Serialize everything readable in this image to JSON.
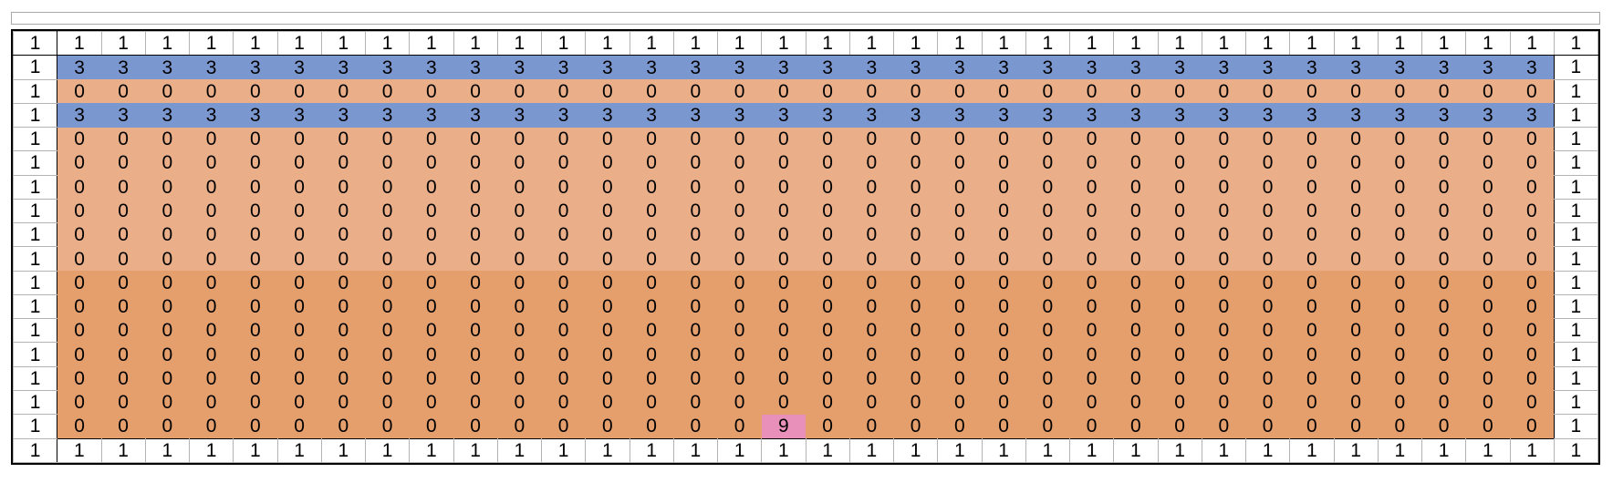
{
  "grid": {
    "columns": 36,
    "colors": {
      "1": "#ffffff",
      "3": "#7b97cf",
      "0_light": "#eaaf89",
      "0_dark": "#e49f6d",
      "9": "#e88fba"
    },
    "rows": [
      [
        "1",
        "1",
        "1",
        "1",
        "1",
        "1",
        "1",
        "1",
        "1",
        "1",
        "1",
        "1",
        "1",
        "1",
        "1",
        "1",
        "1",
        "1",
        "1",
        "1",
        "1",
        "1",
        "1",
        "1",
        "1",
        "1",
        "1",
        "1",
        "1",
        "1",
        "1",
        "1",
        "1",
        "1",
        "1",
        "1"
      ],
      [
        "1",
        "3",
        "3",
        "3",
        "3",
        "3",
        "3",
        "3",
        "3",
        "3",
        "3",
        "3",
        "3",
        "3",
        "3",
        "3",
        "3",
        "3",
        "3",
        "3",
        "3",
        "3",
        "3",
        "3",
        "3",
        "3",
        "3",
        "3",
        "3",
        "3",
        "3",
        "3",
        "3",
        "3",
        "3",
        "1"
      ],
      [
        "1",
        "0",
        "0",
        "0",
        "0",
        "0",
        "0",
        "0",
        "0",
        "0",
        "0",
        "0",
        "0",
        "0",
        "0",
        "0",
        "0",
        "0",
        "0",
        "0",
        "0",
        "0",
        "0",
        "0",
        "0",
        "0",
        "0",
        "0",
        "0",
        "0",
        "0",
        "0",
        "0",
        "0",
        "0",
        "1"
      ],
      [
        "1",
        "3",
        "3",
        "3",
        "3",
        "3",
        "3",
        "3",
        "3",
        "3",
        "3",
        "3",
        "3",
        "3",
        "3",
        "3",
        "3",
        "3",
        "3",
        "3",
        "3",
        "3",
        "3",
        "3",
        "3",
        "3",
        "3",
        "3",
        "3",
        "3",
        "3",
        "3",
        "3",
        "3",
        "3",
        "1"
      ],
      [
        "1",
        "0",
        "0",
        "0",
        "0",
        "0",
        "0",
        "0",
        "0",
        "0",
        "0",
        "0",
        "0",
        "0",
        "0",
        "0",
        "0",
        "0",
        "0",
        "0",
        "0",
        "0",
        "0",
        "0",
        "0",
        "0",
        "0",
        "0",
        "0",
        "0",
        "0",
        "0",
        "0",
        "0",
        "0",
        "1"
      ],
      [
        "1",
        "0",
        "0",
        "0",
        "0",
        "0",
        "0",
        "0",
        "0",
        "0",
        "0",
        "0",
        "0",
        "0",
        "0",
        "0",
        "0",
        "0",
        "0",
        "0",
        "0",
        "0",
        "0",
        "0",
        "0",
        "0",
        "0",
        "0",
        "0",
        "0",
        "0",
        "0",
        "0",
        "0",
        "0",
        "1"
      ],
      [
        "1",
        "0",
        "0",
        "0",
        "0",
        "0",
        "0",
        "0",
        "0",
        "0",
        "0",
        "0",
        "0",
        "0",
        "0",
        "0",
        "0",
        "0",
        "0",
        "0",
        "0",
        "0",
        "0",
        "0",
        "0",
        "0",
        "0",
        "0",
        "0",
        "0",
        "0",
        "0",
        "0",
        "0",
        "0",
        "1"
      ],
      [
        "1",
        "0",
        "0",
        "0",
        "0",
        "0",
        "0",
        "0",
        "0",
        "0",
        "0",
        "0",
        "0",
        "0",
        "0",
        "0",
        "0",
        "0",
        "0",
        "0",
        "0",
        "0",
        "0",
        "0",
        "0",
        "0",
        "0",
        "0",
        "0",
        "0",
        "0",
        "0",
        "0",
        "0",
        "0",
        "1"
      ],
      [
        "1",
        "0",
        "0",
        "0",
        "0",
        "0",
        "0",
        "0",
        "0",
        "0",
        "0",
        "0",
        "0",
        "0",
        "0",
        "0",
        "0",
        "0",
        "0",
        "0",
        "0",
        "0",
        "0",
        "0",
        "0",
        "0",
        "0",
        "0",
        "0",
        "0",
        "0",
        "0",
        "0",
        "0",
        "0",
        "1"
      ],
      [
        "1",
        "0",
        "0",
        "0",
        "0",
        "0",
        "0",
        "0",
        "0",
        "0",
        "0",
        "0",
        "0",
        "0",
        "0",
        "0",
        "0",
        "0",
        "0",
        "0",
        "0",
        "0",
        "0",
        "0",
        "0",
        "0",
        "0",
        "0",
        "0",
        "0",
        "0",
        "0",
        "0",
        "0",
        "0",
        "1"
      ],
      [
        "1",
        "0",
        "0",
        "0",
        "0",
        "0",
        "0",
        "0",
        "0",
        "0",
        "0",
        "0",
        "0",
        "0",
        "0",
        "0",
        "0",
        "0",
        "0",
        "0",
        "0",
        "0",
        "0",
        "0",
        "0",
        "0",
        "0",
        "0",
        "0",
        "0",
        "0",
        "0",
        "0",
        "0",
        "0",
        "1"
      ],
      [
        "1",
        "0",
        "0",
        "0",
        "0",
        "0",
        "0",
        "0",
        "0",
        "0",
        "0",
        "0",
        "0",
        "0",
        "0",
        "0",
        "0",
        "0",
        "0",
        "0",
        "0",
        "0",
        "0",
        "0",
        "0",
        "0",
        "0",
        "0",
        "0",
        "0",
        "0",
        "0",
        "0",
        "0",
        "0",
        "1"
      ],
      [
        "1",
        "0",
        "0",
        "0",
        "0",
        "0",
        "0",
        "0",
        "0",
        "0",
        "0",
        "0",
        "0",
        "0",
        "0",
        "0",
        "0",
        "0",
        "0",
        "0",
        "0",
        "0",
        "0",
        "0",
        "0",
        "0",
        "0",
        "0",
        "0",
        "0",
        "0",
        "0",
        "0",
        "0",
        "0",
        "1"
      ],
      [
        "1",
        "0",
        "0",
        "0",
        "0",
        "0",
        "0",
        "0",
        "0",
        "0",
        "0",
        "0",
        "0",
        "0",
        "0",
        "0",
        "0",
        "0",
        "0",
        "0",
        "0",
        "0",
        "0",
        "0",
        "0",
        "0",
        "0",
        "0",
        "0",
        "0",
        "0",
        "0",
        "0",
        "0",
        "0",
        "1"
      ],
      [
        "1",
        "0",
        "0",
        "0",
        "0",
        "0",
        "0",
        "0",
        "0",
        "0",
        "0",
        "0",
        "0",
        "0",
        "0",
        "0",
        "0",
        "0",
        "0",
        "0",
        "0",
        "0",
        "0",
        "0",
        "0",
        "0",
        "0",
        "0",
        "0",
        "0",
        "0",
        "0",
        "0",
        "0",
        "0",
        "1"
      ],
      [
        "1",
        "0",
        "0",
        "0",
        "0",
        "0",
        "0",
        "0",
        "0",
        "0",
        "0",
        "0",
        "0",
        "0",
        "0",
        "0",
        "0",
        "0",
        "0",
        "0",
        "0",
        "0",
        "0",
        "0",
        "0",
        "0",
        "0",
        "0",
        "0",
        "0",
        "0",
        "0",
        "0",
        "0",
        "0",
        "1"
      ],
      [
        "1",
        "0",
        "0",
        "0",
        "0",
        "0",
        "0",
        "0",
        "0",
        "0",
        "0",
        "0",
        "0",
        "0",
        "0",
        "0",
        "0",
        "9",
        "0",
        "0",
        "0",
        "0",
        "0",
        "0",
        "0",
        "0",
        "0",
        "0",
        "0",
        "0",
        "0",
        "0",
        "0",
        "0",
        "0",
        "1"
      ],
      [
        "1",
        "1",
        "1",
        "1",
        "1",
        "1",
        "1",
        "1",
        "1",
        "1",
        "1",
        "1",
        "1",
        "1",
        "1",
        "1",
        "1",
        "1",
        "1",
        "1",
        "1",
        "1",
        "1",
        "1",
        "1",
        "1",
        "1",
        "1",
        "1",
        "1",
        "1",
        "1",
        "1",
        "1",
        "1",
        "1"
      ]
    ]
  }
}
